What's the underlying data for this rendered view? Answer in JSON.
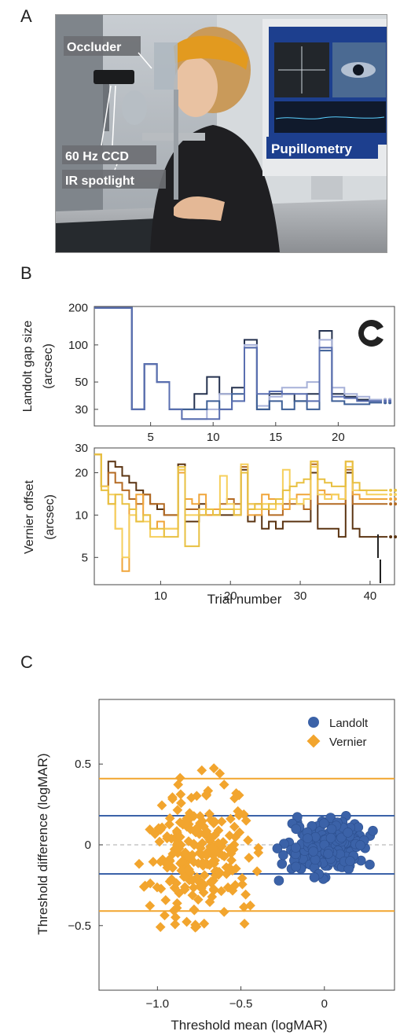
{
  "panels": {
    "a": "A",
    "b": "B",
    "c": "C"
  },
  "photo": {
    "occluder": "Occluder",
    "ccd": "60 Hz CCD",
    "ir": "IR spotlight",
    "pupil": "Pupillometry"
  },
  "colors": {
    "landolt_dark": "#25324f",
    "landolt_mid": "#3d5f96",
    "landolt_light": "#a7b1d8",
    "vernier_dark": "#5b3412",
    "vernier_mid": "#b46a22",
    "vernier_orange": "#f0a53a",
    "vernier_light": "#f6cf5c",
    "scatter_blue": "#3b62a8",
    "scatter_orange": "#f2a52e"
  },
  "chart_data": [
    {
      "type": "line",
      "ylabel": "Landolt gap size (arcsec)",
      "yscale": "log",
      "yticks": [
        30,
        50,
        100,
        200
      ],
      "xticks": [
        5,
        10,
        15,
        20
      ],
      "xlim": [
        0.5,
        24.5
      ],
      "ylim": [
        22,
        205
      ],
      "series": [
        {
          "values": [
            200,
            200,
            200,
            30,
            70,
            50,
            30,
            30,
            40,
            55,
            40,
            45,
            110,
            30,
            40,
            40,
            35,
            40,
            130,
            40,
            38,
            36,
            36
          ]
        },
        {
          "values": [
            200,
            200,
            200,
            30,
            70,
            50,
            30,
            25,
            25,
            30,
            40,
            35,
            100,
            32,
            38,
            45,
            45,
            50,
            110,
            45,
            40,
            38,
            36
          ]
        },
        {
          "values": [
            200,
            200,
            200,
            30,
            70,
            50,
            30,
            30,
            30,
            35,
            30,
            40,
            95,
            30,
            35,
            30,
            35,
            30,
            90,
            35,
            33,
            33,
            34
          ]
        },
        {
          "values": [
            200,
            200,
            200,
            30,
            70,
            50,
            30,
            25,
            25,
            25,
            30,
            35,
            95,
            40,
            42,
            40,
            40,
            35,
            95,
            38,
            37,
            35,
            35
          ]
        }
      ]
    },
    {
      "type": "line",
      "ylabel": "Vernier offset (arcsec)",
      "xlabel": "Trial number",
      "yscale": "log",
      "yticks": [
        5,
        10,
        20,
        30
      ],
      "xticks": [
        10,
        20,
        30,
        40
      ],
      "xlim": [
        0.5,
        43.5
      ],
      "ylim": [
        3.2,
        30
      ],
      "series": [
        {
          "values": [
            27,
            16,
            24,
            22,
            19,
            17,
            15,
            14,
            12,
            11,
            10,
            10,
            23,
            9,
            9,
            12,
            11,
            10,
            10,
            10,
            10,
            21,
            9,
            10,
            8,
            9,
            8,
            9,
            9,
            9,
            9,
            20,
            8,
            8,
            8,
            7,
            20,
            8,
            7,
            7,
            7,
            7
          ]
        },
        {
          "values": [
            27,
            16,
            20,
            17,
            15,
            13,
            12,
            14,
            12,
            12,
            10,
            10,
            21,
            11,
            11,
            10,
            10,
            10,
            12,
            13,
            12,
            22,
            12,
            12,
            11,
            10,
            10,
            12,
            12,
            12,
            11,
            23,
            12,
            12,
            12,
            12,
            21,
            12,
            12,
            12,
            12,
            12
          ]
        },
        {
          "values": [
            27,
            16,
            12,
            8,
            4,
            11,
            14,
            10,
            8,
            9,
            8,
            8,
            20,
            13,
            12,
            14,
            10,
            11,
            11,
            11,
            10,
            20,
            10,
            10,
            14,
            13,
            12,
            11,
            13,
            14,
            14,
            24,
            15,
            14,
            14,
            13,
            24,
            14,
            13,
            13,
            13,
            13
          ]
        },
        {
          "values": [
            27,
            16,
            14,
            8,
            5,
            10,
            9,
            9,
            7,
            7,
            8,
            8,
            21,
            10,
            10,
            11,
            11,
            10,
            19,
            12,
            11,
            23,
            12,
            11,
            12,
            11,
            12,
            21,
            13,
            12,
            13,
            22,
            14,
            13,
            14,
            13,
            22,
            15,
            15,
            14,
            14,
            14
          ]
        },
        {
          "values": [
            27,
            15,
            12,
            14,
            12,
            11,
            9,
            10,
            8,
            8,
            7,
            7,
            22,
            6,
            6,
            10,
            11,
            10,
            11,
            11,
            10,
            20,
            11,
            12,
            11,
            12,
            13,
            15,
            16,
            17,
            18,
            24,
            18,
            17,
            16,
            16,
            24,
            17,
            15,
            15,
            15,
            15
          ]
        }
      ]
    },
    {
      "type": "scatter",
      "xlabel": "Threshold mean (logMAR)",
      "ylabel": "Threshold difference (logMAR)",
      "xlim": [
        -1.35,
        0.42
      ],
      "ylim": [
        -0.9,
        0.9
      ],
      "xticks": [
        -1.0,
        -0.5,
        0
      ],
      "xtick_labels": [
        "−1.0",
        "−0.5",
        "0"
      ],
      "yticks": [
        -0.5,
        0,
        0.5
      ],
      "ytick_labels": [
        "−0.5",
        "0",
        "0.5"
      ],
      "legend": [
        "Landolt",
        "Vernier"
      ],
      "legend_position": "top-right",
      "hlines": [
        {
          "y": 0.41,
          "color": "#f2a52e"
        },
        {
          "y": -0.41,
          "color": "#f2a52e"
        },
        {
          "y": 0.18,
          "color": "#3b62a8"
        },
        {
          "y": -0.18,
          "color": "#3b62a8"
        },
        {
          "y": 0,
          "color": "#bbbbbb",
          "dashed": true
        }
      ],
      "series": [
        {
          "name": "Landolt",
          "marker": "circle",
          "count": 210,
          "x_range": [
            -0.33,
            0.35
          ],
          "y_range": [
            -0.28,
            0.25
          ]
        },
        {
          "name": "Vernier",
          "marker": "diamond",
          "count": 230,
          "x_range": [
            -1.2,
            -0.3
          ],
          "y_range": [
            -0.78,
            0.63
          ]
        }
      ]
    }
  ]
}
